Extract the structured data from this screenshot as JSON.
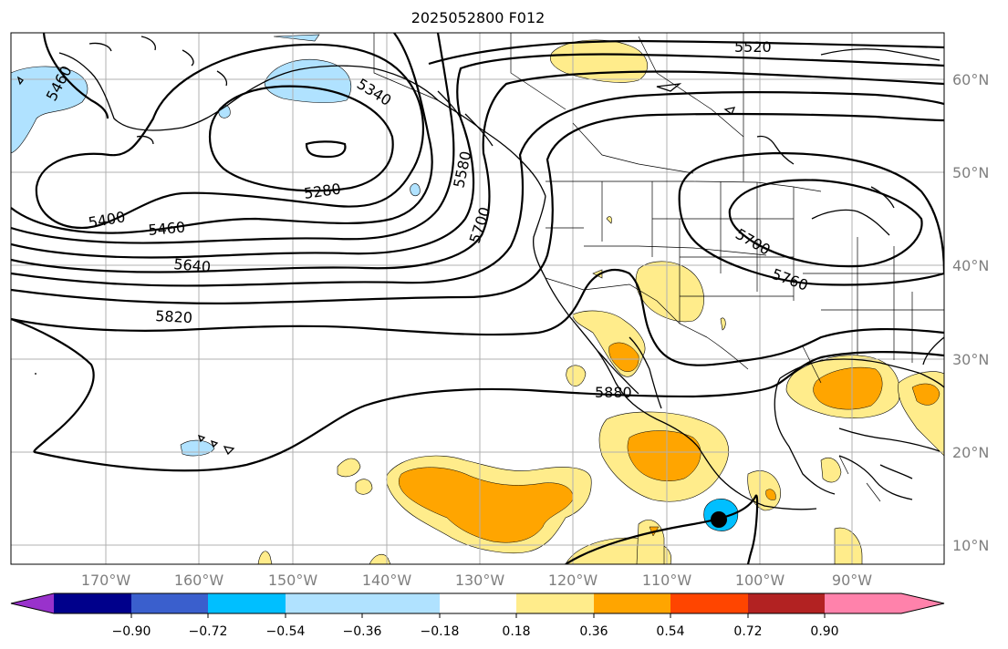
{
  "title": "2025052800 F012",
  "map": {
    "lon_labels": [
      "170°W",
      "160°W",
      "150°W",
      "140°W",
      "130°W",
      "120°W",
      "110°W",
      "100°W",
      "90°W"
    ],
    "lat_labels": [
      "60°N",
      "50°N",
      "40°N",
      "30°N",
      "20°N",
      "10°N"
    ],
    "contour_labels": [
      "5460",
      "5340",
      "5280",
      "5400",
      "5460",
      "5640",
      "5820",
      "5580",
      "5700",
      "5520",
      "5700",
      "5760",
      "5880"
    ]
  },
  "colorbar": {
    "colors": [
      "#9932cc",
      "#00008b",
      "#3a5fcd",
      "#00bfff",
      "#b0e2ff",
      "#ffffff",
      "#ffec8b",
      "#ffa500",
      "#ff4500",
      "#b22222",
      "#ff82ab"
    ],
    "tick_labels": [
      "−0.90",
      "−0.72",
      "−0.54",
      "−0.36",
      "−0.18",
      "0.18",
      "0.36",
      "0.54",
      "0.72",
      "0.90"
    ]
  }
}
